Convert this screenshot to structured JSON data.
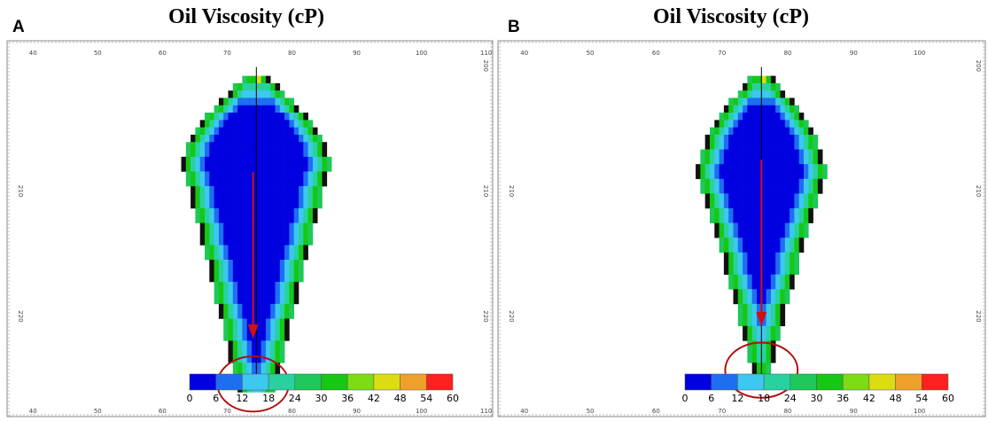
{
  "panels": [
    {
      "letter": "A",
      "title": "Oil Viscosity (cP)",
      "x_ticks_top": [
        "40",
        "50",
        "60",
        "70",
        "80",
        "90",
        "100",
        "110"
      ],
      "x_ticks_bottom": [
        "40",
        "50",
        "60",
        "70",
        "80",
        "90",
        "100",
        "110"
      ],
      "y_ticks_right": [
        "200",
        "210",
        "220"
      ],
      "y_ticks_left": [
        "210",
        "220"
      ],
      "colorbar_labels": [
        "0",
        "6",
        "12",
        "18",
        "24",
        "30",
        "36",
        "42",
        "48",
        "54",
        "60"
      ]
    },
    {
      "letter": "B",
      "title": "Oil Viscosity (cP)",
      "x_ticks_top": [
        "40",
        "50",
        "60",
        "70",
        "80",
        "90",
        "100"
      ],
      "x_ticks_bottom": [
        "40",
        "50",
        "60",
        "70",
        "80",
        "90",
        "100"
      ],
      "y_ticks_right": [
        "200",
        "210",
        "220"
      ],
      "y_ticks_left": [
        "210",
        "220"
      ],
      "colorbar_labels": [
        "0",
        "6",
        "12",
        "18",
        "24",
        "30",
        "36",
        "42",
        "48",
        "54",
        "60"
      ]
    }
  ],
  "chart_data": [
    {
      "type": "heatmap",
      "title": "Oil Viscosity (cP)",
      "panel": "A",
      "xlim": [
        36,
        111
      ],
      "ylim": [
        198,
        228
      ],
      "colorbar": {
        "min": 0,
        "max": 60,
        "step": 6,
        "colors": [
          "#0000e0",
          "#1e6ef0",
          "#3cc8f0",
          "#28d2a0",
          "#1ec85a",
          "#14c814",
          "#7ddc14",
          "#dcdc14",
          "#f0a028",
          "#ff2020"
        ]
      },
      "chamber": {
        "top_y": 200.8,
        "apex_x": 74.5,
        "bottom_y": 225.6,
        "max_halfwidth": 11.5,
        "widest_y": 208.2,
        "bottom_halfwidth": 3.2
      },
      "arrow": {
        "x": 74,
        "from_y": 208.5,
        "to_y": 221.5
      },
      "circle": {
        "center": [
          74,
          225.4
        ],
        "radius_x": 5.5,
        "radius_y": 2.2
      }
    },
    {
      "type": "heatmap",
      "title": "Oil Viscosity (cP)",
      "panel": "B",
      "xlim": [
        36,
        110
      ],
      "ylim": [
        198,
        228
      ],
      "colorbar": {
        "min": 0,
        "max": 60,
        "step": 6,
        "colors": [
          "#0000e0",
          "#1e6ef0",
          "#3cc8f0",
          "#28d2a0",
          "#1ec85a",
          "#14c814",
          "#7ddc14",
          "#dcdc14",
          "#f0a028",
          "#ff2020"
        ]
      },
      "chamber": {
        "top_y": 200.8,
        "apex_x": 76,
        "bottom_y": 225.4,
        "max_halfwidth": 9.8,
        "widest_y": 209.0,
        "bottom_halfwidth": 0.8
      },
      "arrow": {
        "x": 76,
        "from_y": 207.5,
        "to_y": 220.5
      },
      "circle": {
        "center": [
          76,
          224.3
        ],
        "radius_x": 5.5,
        "radius_y": 2.2
      }
    }
  ]
}
